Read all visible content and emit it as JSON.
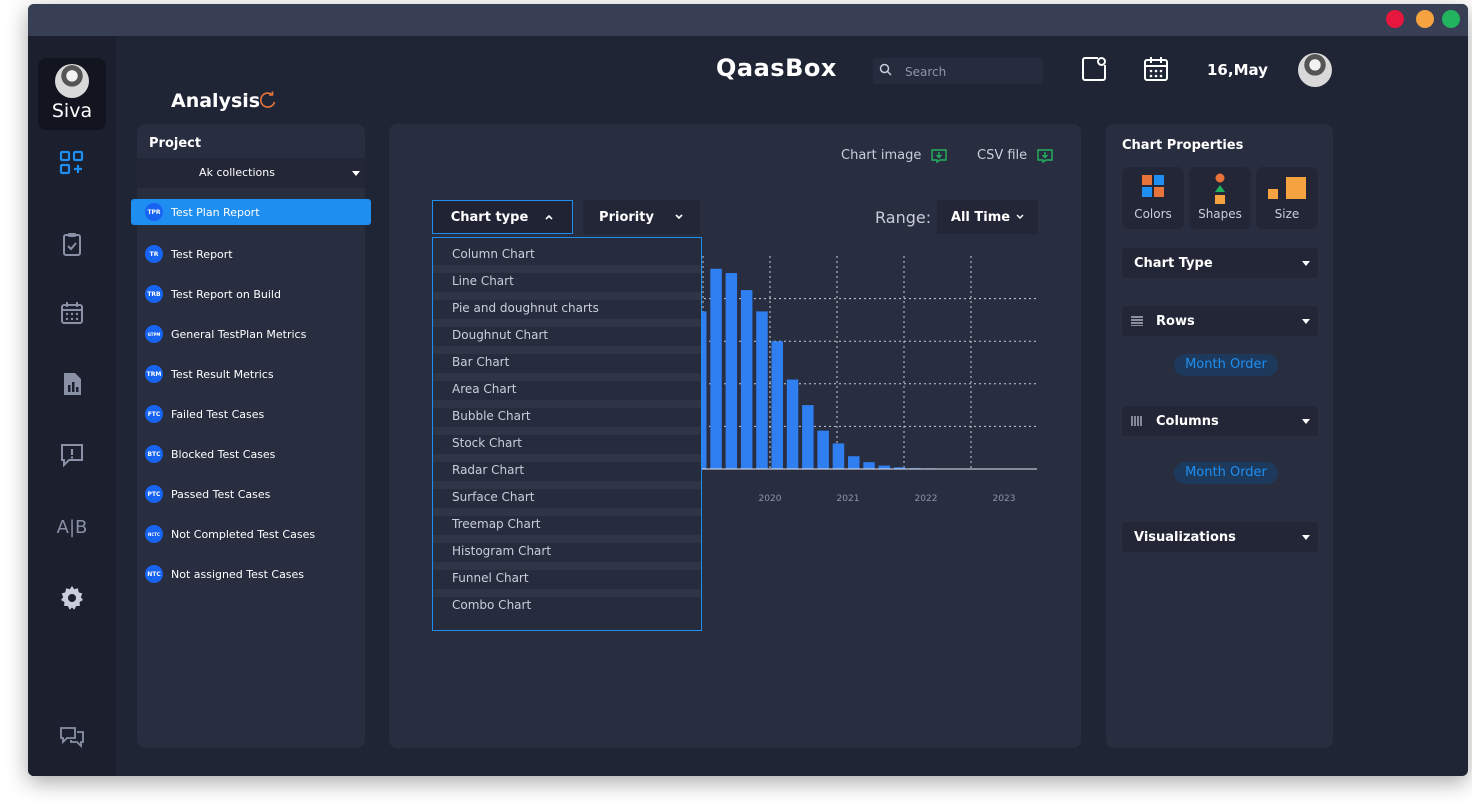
{
  "app": {
    "logo": "QaasBox",
    "date": "16,May"
  },
  "user": {
    "name": "Siva"
  },
  "search": {
    "placeholder": "Search"
  },
  "page": {
    "title": "Analysis"
  },
  "project": {
    "label": "Project",
    "selected": "Ak collections",
    "reports": [
      {
        "badge": "TPR",
        "label": "Test Plan Report",
        "active": true
      },
      {
        "badge": "TR",
        "label": "Test Report"
      },
      {
        "badge": "TRB",
        "label": "Test Report on Build"
      },
      {
        "badge": "GTPM",
        "label": "General TestPlan Metrics"
      },
      {
        "badge": "TRM",
        "label": "Test Result Metrics"
      },
      {
        "badge": "FTC",
        "label": "Failed Test Cases"
      },
      {
        "badge": "BTC",
        "label": "Blocked Test Cases"
      },
      {
        "badge": "PTC",
        "label": "Passed Test Cases"
      },
      {
        "badge": "NCTC",
        "label": "Not Completed Test Cases"
      },
      {
        "badge": "NTC",
        "label": "Not assigned Test Cases"
      }
    ]
  },
  "toolbar": {
    "chart_image": "Chart image",
    "csv_file": "CSV file",
    "chart_type": "Chart type",
    "priority": "Priority",
    "range_label": "Range:",
    "range_value": "All Time"
  },
  "chart_type_options": [
    "Column Chart",
    "Line Chart",
    "Pie and doughnut charts",
    "Doughnut Chart",
    "Bar Chart",
    "Area Chart",
    "Bubble Chart",
    "Stock Chart",
    "Radar Chart",
    "Surface Chart",
    "Treemap Chart",
    "Histogram Chart",
    "Funnel Chart",
    "Combo Chart"
  ],
  "chart_data": {
    "type": "bar",
    "x_ticks": [
      "2020",
      "2021",
      "2022",
      "2023"
    ],
    "values": [
      37,
      47,
      46,
      42,
      37,
      30,
      21,
      15,
      9,
      6,
      3,
      1.6,
      0.8,
      0.4,
      0.2,
      0.15,
      0.1
    ],
    "ylim": [
      0,
      50
    ],
    "grid": true,
    "color": "#2f7ff0"
  },
  "properties": {
    "title": "Chart Properties",
    "tiles": [
      {
        "label": "Colors"
      },
      {
        "label": "Shapes"
      },
      {
        "label": "Size"
      }
    ],
    "chart_type": "Chart Type",
    "rows": "Rows",
    "rows_pill": "Month Order",
    "columns": "Columns",
    "columns_pill": "Month Order",
    "visualizations": "Visualizations"
  },
  "colors": {
    "accent": "#1f8ef1",
    "bar": "#2f7ff0",
    "bg": "#202536"
  }
}
